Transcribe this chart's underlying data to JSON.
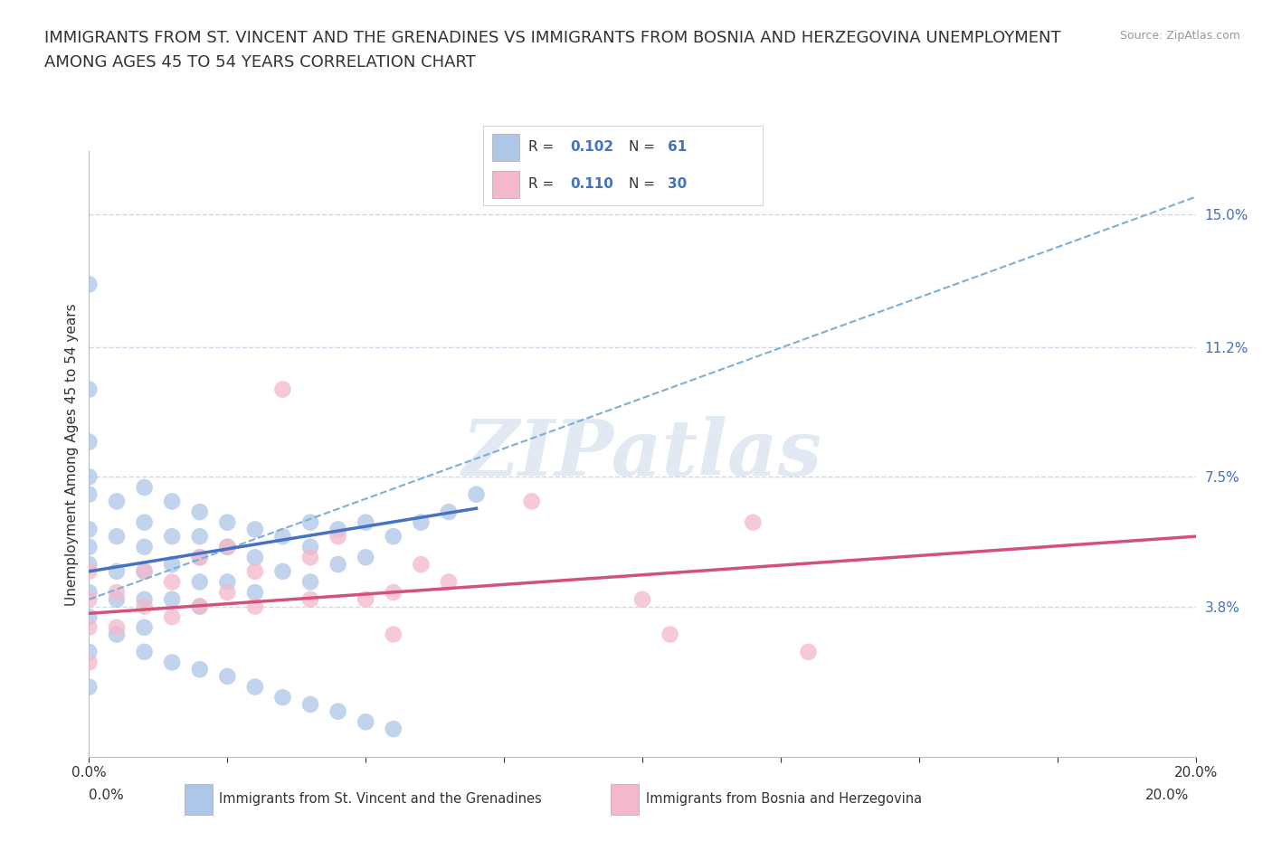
{
  "title_line1": "IMMIGRANTS FROM ST. VINCENT AND THE GRENADINES VS IMMIGRANTS FROM BOSNIA AND HERZEGOVINA UNEMPLOYMENT",
  "title_line2": "AMONG AGES 45 TO 54 YEARS CORRELATION CHART",
  "source_text": "Source: ZipAtlas.com",
  "ylabel": "Unemployment Among Ages 45 to 54 years",
  "xlabel_blue": "Immigrants from St. Vincent and the Grenadines",
  "xlabel_pink": "Immigrants from Bosnia and Herzegovina",
  "watermark": "ZIPatlas",
  "xlim": [
    0.0,
    0.2
  ],
  "ylim": [
    -0.005,
    0.168
  ],
  "xticks": [
    0.0,
    0.025,
    0.05,
    0.075,
    0.1,
    0.125,
    0.15,
    0.175,
    0.2
  ],
  "xticklabels": [
    "0.0%",
    "",
    "",
    "",
    "",
    "",
    "",
    "",
    "20.0%"
  ],
  "yticks_right": [
    0.038,
    0.075,
    0.112,
    0.15
  ],
  "yticklabels_right": [
    "3.8%",
    "7.5%",
    "11.2%",
    "15.0%"
  ],
  "R_blue": 0.102,
  "N_blue": 61,
  "R_pink": 0.11,
  "N_pink": 30,
  "color_blue": "#aec6e8",
  "color_pink": "#f4b8cc",
  "line_blue": "#4472c4",
  "line_pink": "#d4517a",
  "line_dashed_color": "#7bafd4",
  "blue_scatter_x": [
    0.0,
    0.0,
    0.0,
    0.0,
    0.0,
    0.0,
    0.0,
    0.0,
    0.0,
    0.0,
    0.0,
    0.0,
    0.005,
    0.005,
    0.005,
    0.005,
    0.005,
    0.01,
    0.01,
    0.01,
    0.01,
    0.01,
    0.01,
    0.015,
    0.015,
    0.015,
    0.015,
    0.02,
    0.02,
    0.02,
    0.02,
    0.02,
    0.025,
    0.025,
    0.025,
    0.03,
    0.03,
    0.03,
    0.035,
    0.035,
    0.04,
    0.04,
    0.04,
    0.045,
    0.045,
    0.05,
    0.05,
    0.055,
    0.06,
    0.065,
    0.07,
    0.01,
    0.015,
    0.02,
    0.025,
    0.03,
    0.035,
    0.04,
    0.045,
    0.05,
    0.055
  ],
  "blue_scatter_y": [
    0.13,
    0.1,
    0.085,
    0.075,
    0.07,
    0.06,
    0.055,
    0.05,
    0.042,
    0.035,
    0.025,
    0.015,
    0.068,
    0.058,
    0.048,
    0.04,
    0.03,
    0.072,
    0.062,
    0.055,
    0.048,
    0.04,
    0.032,
    0.068,
    0.058,
    0.05,
    0.04,
    0.065,
    0.058,
    0.052,
    0.045,
    0.038,
    0.062,
    0.055,
    0.045,
    0.06,
    0.052,
    0.042,
    0.058,
    0.048,
    0.062,
    0.055,
    0.045,
    0.06,
    0.05,
    0.062,
    0.052,
    0.058,
    0.062,
    0.065,
    0.07,
    0.025,
    0.022,
    0.02,
    0.018,
    0.015,
    0.012,
    0.01,
    0.008,
    0.005,
    0.003
  ],
  "pink_scatter_x": [
    0.0,
    0.0,
    0.0,
    0.0,
    0.005,
    0.005,
    0.01,
    0.01,
    0.015,
    0.015,
    0.02,
    0.02,
    0.025,
    0.025,
    0.03,
    0.03,
    0.035,
    0.04,
    0.04,
    0.045,
    0.05,
    0.055,
    0.055,
    0.06,
    0.065,
    0.08,
    0.1,
    0.105,
    0.12,
    0.13
  ],
  "pink_scatter_y": [
    0.048,
    0.04,
    0.032,
    0.022,
    0.042,
    0.032,
    0.048,
    0.038,
    0.045,
    0.035,
    0.052,
    0.038,
    0.055,
    0.042,
    0.048,
    0.038,
    0.1,
    0.052,
    0.04,
    0.058,
    0.04,
    0.042,
    0.03,
    0.05,
    0.045,
    0.068,
    0.04,
    0.03,
    0.062,
    0.025
  ],
  "blue_trend_x": [
    0.0,
    0.07
  ],
  "blue_trend_y": [
    0.048,
    0.066
  ],
  "pink_trend_x": [
    0.0,
    0.2
  ],
  "pink_trend_y": [
    0.036,
    0.058
  ],
  "dashed_trend_x": [
    0.0,
    0.2
  ],
  "dashed_trend_y": [
    0.04,
    0.155
  ],
  "grid_color": "#d0d8e8",
  "grid_style": "--",
  "background_color": "#ffffff",
  "title_fontsize": 13,
  "label_fontsize": 11,
  "tick_label_fontsize": 11
}
